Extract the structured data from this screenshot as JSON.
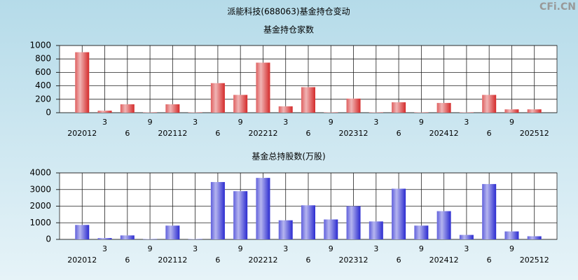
{
  "title": "派能科技(688063)基金持仓变动",
  "watermark": "CFi.CN",
  "chart_data": [
    {
      "type": "bar",
      "title": "基金持仓家数",
      "categories": [
        "202012",
        "3",
        "6",
        "9",
        "202112",
        "3",
        "6",
        "9",
        "202212",
        "3",
        "6",
        "9",
        "202312",
        "3",
        "6",
        "9",
        "202412",
        "3",
        "6",
        "9",
        "202512"
      ],
      "values": [
        900,
        30,
        125,
        5,
        125,
        5,
        440,
        265,
        745,
        95,
        380,
        5,
        210,
        5,
        155,
        5,
        145,
        5,
        265,
        50,
        50
      ],
      "color": "#d42a2a",
      "ylim": [
        0,
        1000
      ],
      "yticks": [
        0,
        200,
        400,
        600,
        800,
        1000
      ],
      "grid": true
    },
    {
      "type": "bar",
      "title": "基金总持股数(万股)",
      "categories": [
        "202012",
        "3",
        "6",
        "9",
        "202112",
        "3",
        "6",
        "9",
        "202212",
        "3",
        "6",
        "9",
        "202312",
        "3",
        "6",
        "9",
        "202412",
        "3",
        "6",
        "9",
        "202512"
      ],
      "values": [
        870,
        80,
        240,
        20,
        830,
        20,
        3450,
        2900,
        3700,
        1150,
        2050,
        1200,
        2000,
        1080,
        3050,
        830,
        1700,
        270,
        3330,
        480,
        190
      ],
      "color": "#2b2bd0",
      "ylim": [
        0,
        4000
      ],
      "yticks": [
        0,
        1000,
        2000,
        3000,
        4000
      ],
      "grid": true
    }
  ]
}
